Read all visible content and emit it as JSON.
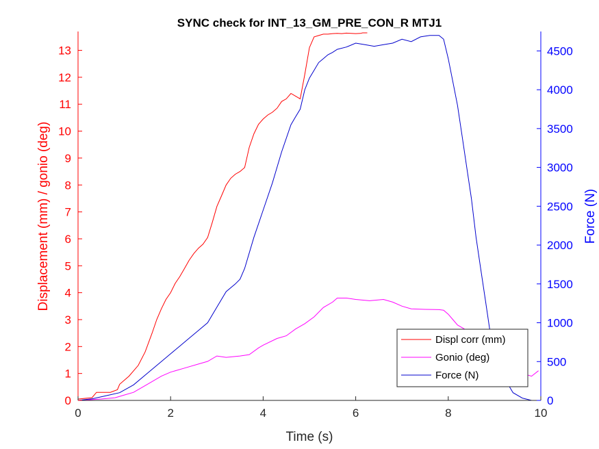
{
  "chart_data": {
    "type": "line",
    "title": "SYNC check for INT_13_GM_PRE_CON_R MTJ1",
    "xlabel": "Time (s)",
    "ylabel_left": "Displacement (mm) / gonio (deg)",
    "ylabel_right": "Force (N)",
    "xlim": [
      0,
      10
    ],
    "ylim_left": [
      0,
      13.7
    ],
    "ylim_right": [
      0,
      4750
    ],
    "x_ticks": [
      "0",
      "2",
      "4",
      "6",
      "8",
      "10"
    ],
    "y_left_ticks": [
      "0",
      "1",
      "2",
      "3",
      "4",
      "5",
      "6",
      "7",
      "8",
      "9",
      "10",
      "11",
      "12",
      "13"
    ],
    "y_right_ticks": [
      "0",
      "500",
      "1000",
      "1500",
      "2000",
      "2500",
      "3000",
      "3500",
      "4000",
      "4500"
    ],
    "legend_position": "bottom-right",
    "series": [
      {
        "name": "Displ corr (mm)",
        "color": "#ff0000",
        "axis": "left",
        "x": [
          0.0,
          0.3,
          0.4,
          0.7,
          0.85,
          0.9,
          1.0,
          1.1,
          1.3,
          1.45,
          1.6,
          1.7,
          1.8,
          1.9,
          2.0,
          2.1,
          2.2,
          2.3,
          2.4,
          2.5,
          2.6,
          2.7,
          2.8,
          2.9,
          3.0,
          3.1,
          3.2,
          3.3,
          3.4,
          3.5,
          3.6,
          3.7,
          3.8,
          3.9,
          4.0,
          4.1,
          4.2,
          4.3,
          4.4,
          4.5,
          4.6,
          4.7,
          4.8,
          4.9,
          5.0,
          5.1,
          5.2,
          5.3,
          5.4,
          5.5,
          5.6,
          5.7,
          5.8,
          5.9,
          6.0,
          6.1,
          6.15,
          6.25
        ],
        "y": [
          0.05,
          0.1,
          0.3,
          0.3,
          0.4,
          0.6,
          0.75,
          0.9,
          1.3,
          1.8,
          2.5,
          3.0,
          3.4,
          3.75,
          4.0,
          4.35,
          4.6,
          4.9,
          5.2,
          5.45,
          5.65,
          5.8,
          6.05,
          6.6,
          7.2,
          7.6,
          8.0,
          8.25,
          8.4,
          8.5,
          8.65,
          9.4,
          9.9,
          10.25,
          10.45,
          10.6,
          10.7,
          10.85,
          11.1,
          11.2,
          11.4,
          11.3,
          11.2,
          12.1,
          13.1,
          13.5,
          13.55,
          13.6,
          13.6,
          13.62,
          13.63,
          13.62,
          13.64,
          13.63,
          13.62,
          13.63,
          13.65,
          13.65
        ]
      },
      {
        "name": "Gonio (deg)",
        "color": "#ff00ff",
        "axis": "left",
        "x": [
          0.0,
          0.5,
          0.8,
          1.0,
          1.2,
          1.5,
          1.8,
          2.0,
          2.3,
          2.6,
          2.8,
          3.0,
          3.2,
          3.5,
          3.7,
          3.9,
          4.0,
          4.3,
          4.5,
          4.7,
          4.9,
          5.1,
          5.3,
          5.5,
          5.6,
          5.8,
          6.0,
          6.3,
          6.6,
          6.8,
          7.0,
          7.2,
          7.5,
          7.8,
          7.9,
          8.0,
          8.1,
          8.2,
          8.4,
          8.6,
          8.8,
          9.0,
          9.2,
          9.4,
          9.6,
          9.8,
          9.95
        ],
        "y": [
          0.0,
          0.05,
          0.1,
          0.2,
          0.3,
          0.6,
          0.9,
          1.05,
          1.2,
          1.35,
          1.45,
          1.65,
          1.6,
          1.65,
          1.7,
          1.95,
          2.05,
          2.3,
          2.4,
          2.65,
          2.85,
          3.1,
          3.45,
          3.65,
          3.8,
          3.8,
          3.75,
          3.7,
          3.75,
          3.65,
          3.5,
          3.4,
          3.38,
          3.37,
          3.35,
          3.2,
          3.0,
          2.8,
          2.6,
          2.4,
          2.2,
          1.9,
          1.6,
          1.3,
          1.0,
          0.9,
          1.1
        ]
      },
      {
        "name": "Force (N)",
        "color": "#0000cc",
        "axis": "right",
        "x": [
          0.0,
          0.3,
          0.6,
          0.9,
          1.2,
          1.5,
          1.8,
          2.0,
          2.2,
          2.4,
          2.6,
          2.8,
          3.0,
          3.2,
          3.4,
          3.5,
          3.6,
          3.8,
          4.0,
          4.2,
          4.4,
          4.6,
          4.7,
          4.8,
          4.9,
          5.0,
          5.1,
          5.2,
          5.3,
          5.4,
          5.5,
          5.6,
          5.8,
          6.0,
          6.2,
          6.4,
          6.6,
          6.8,
          7.0,
          7.2,
          7.4,
          7.6,
          7.8,
          7.9,
          8.0,
          8.1,
          8.2,
          8.3,
          8.4,
          8.5,
          8.6,
          8.7,
          8.8,
          8.9,
          9.0,
          9.2,
          9.4,
          9.6,
          9.8
        ],
        "y": [
          0.0,
          20,
          60,
          100,
          200,
          350,
          500,
          600,
          700,
          800,
          900,
          1000,
          1200,
          1400,
          1500,
          1560,
          1700,
          2100,
          2450,
          2800,
          3200,
          3550,
          3650,
          3750,
          4000,
          4150,
          4250,
          4350,
          4400,
          4450,
          4480,
          4520,
          4550,
          4600,
          4580,
          4560,
          4580,
          4600,
          4650,
          4620,
          4680,
          4700,
          4700,
          4650,
          4400,
          4100,
          3800,
          3400,
          3000,
          2600,
          2100,
          1700,
          1300,
          900,
          600,
          300,
          100,
          30,
          0
        ]
      }
    ]
  }
}
